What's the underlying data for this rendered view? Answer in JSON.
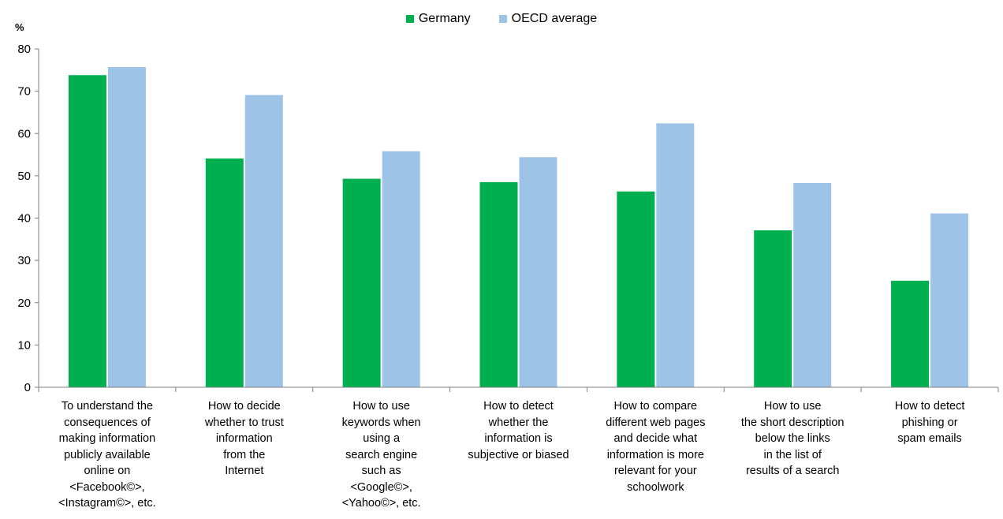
{
  "chart_data": {
    "type": "bar",
    "unit_label": "%",
    "categories": [
      "To understand the\nconsequences of\nmaking information\npublicly available\nonline on\n<Facebook©>,\n<Instagram©>, etc.",
      "How to decide\nwhether to trust\ninformation\nfrom the\nInternet",
      "How to use\nkeywords when\nusing a\nsearch engine\nsuch as\n<Google©>,\n<Yahoo©>, etc.",
      "How to detect\nwhether the\ninformation is\nsubjective or biased",
      "How to compare\ndifferent web pages\nand decide what\ninformation is more\nrelevant for your\nschoolwork",
      "How to use\nthe short description\nbelow the links\nin the list of\nresults of a search",
      "How to detect\nphishing or\nspam emails"
    ],
    "series": [
      {
        "name": "Germany",
        "color": "#00b050",
        "values": [
          73.8,
          54.1,
          49.3,
          48.5,
          46.3,
          37.1,
          25.2
        ]
      },
      {
        "name": "OECD average",
        "color": "#9dc3e6",
        "values": [
          75.7,
          69.1,
          55.8,
          54.4,
          62.4,
          48.3,
          41.1
        ]
      }
    ],
    "ylim": [
      0,
      80
    ],
    "yticks": [
      0,
      10,
      20,
      30,
      40,
      50,
      60,
      70,
      80
    ],
    "grid": false,
    "legend_position": "top-center"
  }
}
